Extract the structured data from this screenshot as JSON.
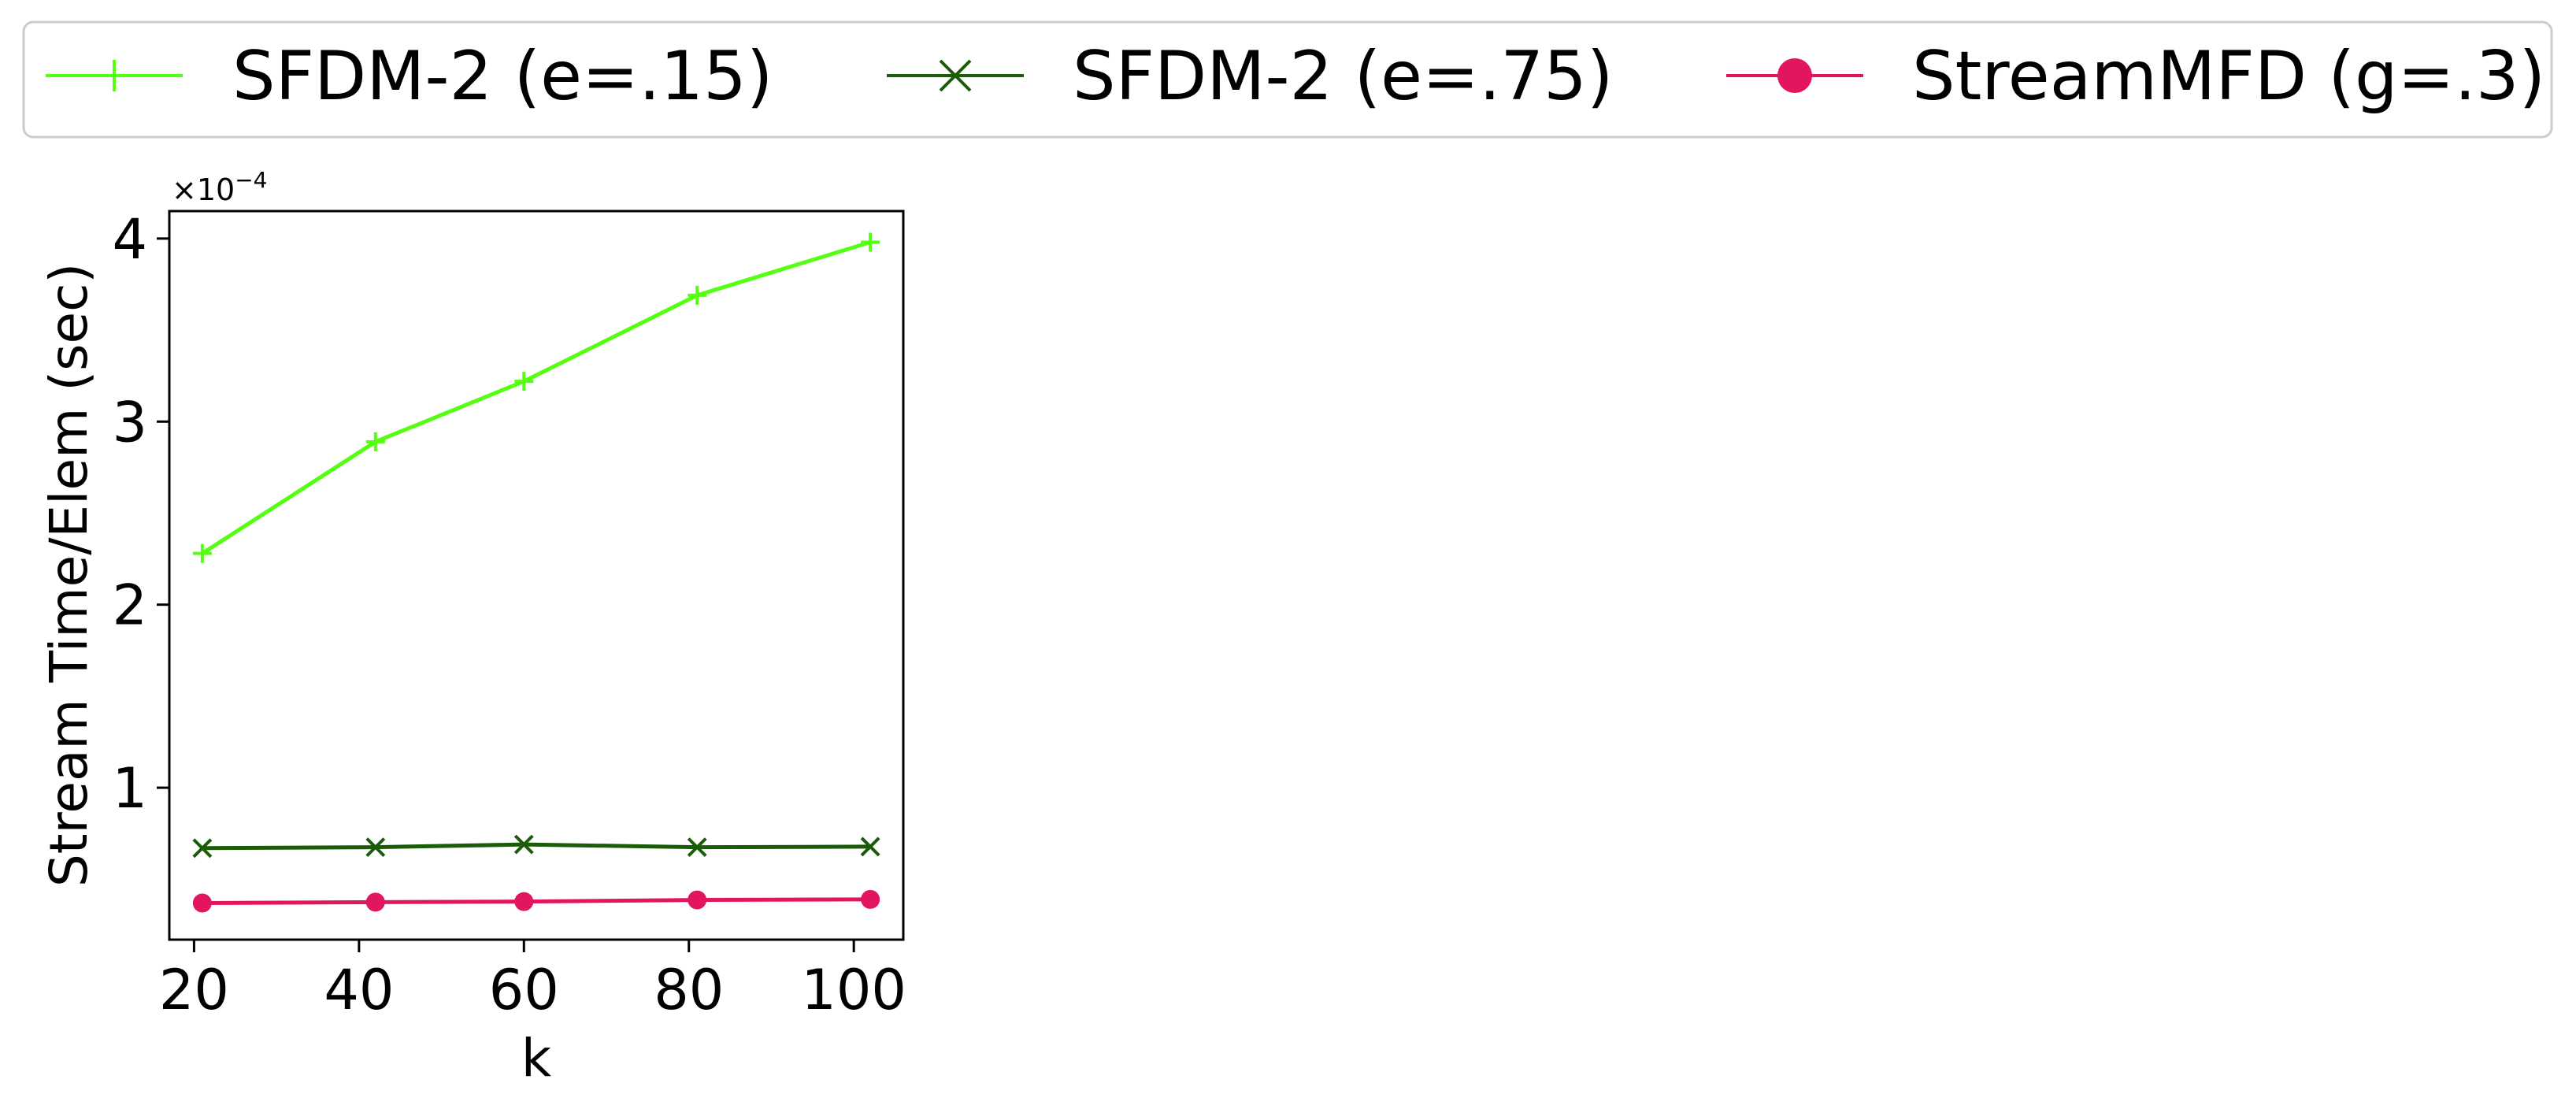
{
  "chart_data": {
    "type": "line",
    "title": "",
    "xlabel": "k",
    "ylabel": "Stream Time/Elem (sec)",
    "y_scale_multiplier": "×10",
    "y_scale_exponent": "−4",
    "x": [
      21,
      42,
      60,
      81,
      102
    ],
    "xticks": [
      20,
      40,
      60,
      80,
      100
    ],
    "xtick_labels": [
      "20",
      "40",
      "60",
      "80",
      "100"
    ],
    "yticks": [
      1,
      2,
      3,
      4
    ],
    "ytick_labels": [
      "1",
      "2",
      "3",
      "4"
    ],
    "xlim": [
      17,
      106
    ],
    "ylim": [
      0.17,
      4.15
    ],
    "grid": false,
    "legend_position": "top",
    "series": [
      {
        "name": "SFDM-2 (e=.15)",
        "color": "#55ff11",
        "marker": "plus",
        "values": [
          2.28,
          2.89,
          3.22,
          3.69,
          3.98
        ]
      },
      {
        "name": "SFDM-2 (e=.75)",
        "color": "#1a5c08",
        "marker": "x",
        "values": [
          0.67,
          0.675,
          0.69,
          0.675,
          0.678
        ]
      },
      {
        "name": "StreamMFD (g=.3)",
        "color": "#e2155f",
        "marker": "circle",
        "values": [
          0.37,
          0.375,
          0.378,
          0.387,
          0.39
        ]
      }
    ]
  }
}
